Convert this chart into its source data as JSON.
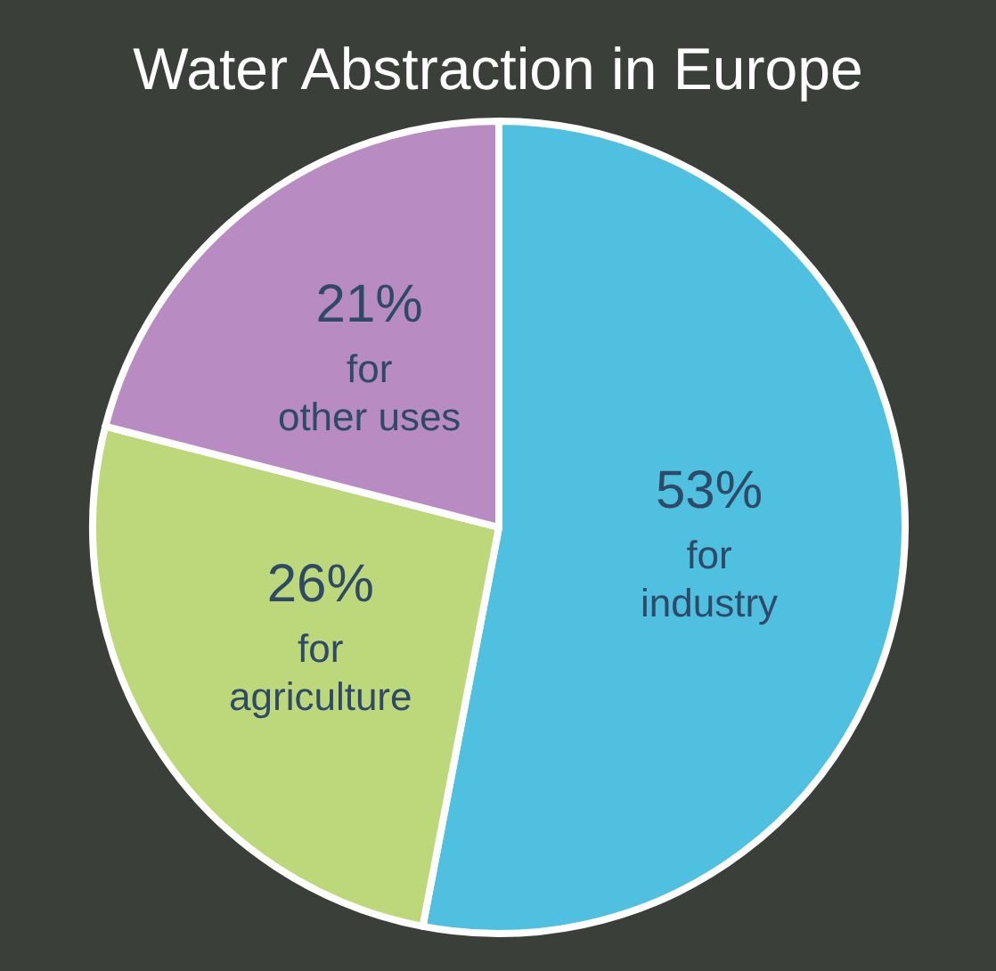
{
  "chart_data": {
    "type": "pie",
    "title": "Water Abstraction in Europe",
    "categories": [
      "for industry",
      "for agriculture",
      "for other uses"
    ],
    "values": [
      53,
      26,
      21
    ],
    "colors": [
      "#4fc0e0",
      "#bdd87b",
      "#b98bc3"
    ],
    "value_labels": [
      "53%",
      "26%",
      "21%"
    ]
  }
}
